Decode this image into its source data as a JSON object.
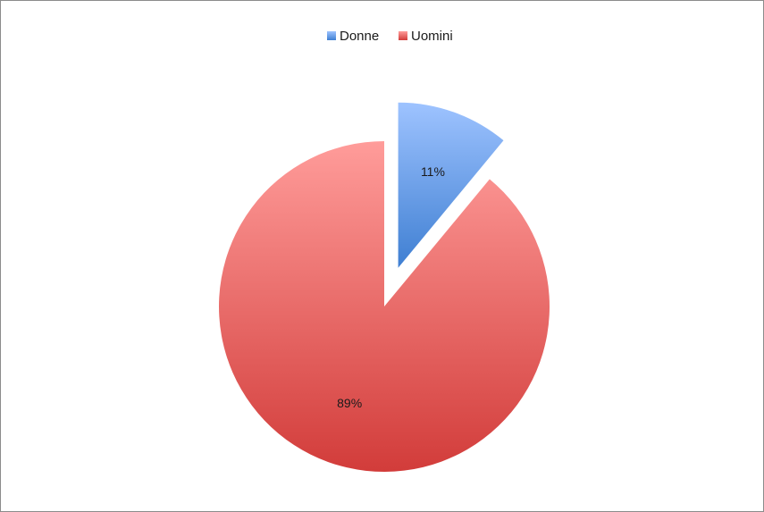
{
  "chart_data": {
    "type": "pie",
    "title": "",
    "categories": [
      "Donne",
      "Uomini"
    ],
    "values": [
      11,
      89
    ],
    "labels": [
      "11%",
      "89%"
    ],
    "colors": [
      "#6f9ce0",
      "#e06666"
    ],
    "exploded": [
      true,
      false
    ],
    "legend_position": "top"
  }
}
